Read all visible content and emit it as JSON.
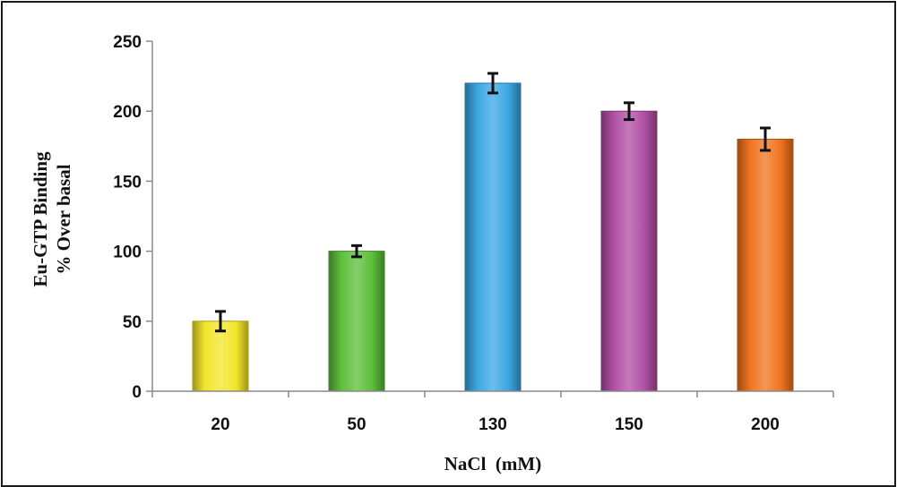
{
  "chart_data": {
    "type": "bar",
    "xlabel": "NaCl  (mM)",
    "ylabel_line1": "Eu-GTP Binding",
    "ylabel_line2": "% Over basal",
    "categories": [
      "20",
      "50",
      "130",
      "150",
      "200"
    ],
    "values": [
      50,
      100,
      220,
      200,
      180
    ],
    "errors": [
      7,
      4,
      7,
      6,
      8
    ],
    "bar_colors": [
      "#f2e62a",
      "#5cbf3a",
      "#3ba7e3",
      "#b04fa4",
      "#f0731f"
    ],
    "ylim": [
      0,
      250
    ],
    "yticks": [
      0,
      50,
      100,
      150,
      200,
      250
    ],
    "grid": false,
    "legend": "none"
  }
}
